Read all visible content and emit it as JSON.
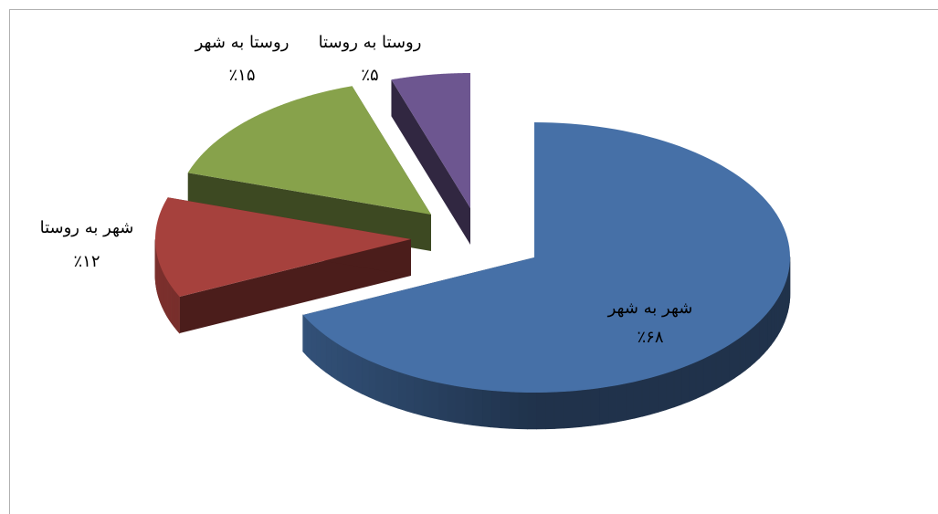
{
  "chart_data": {
    "type": "pie",
    "categories": [
      "شهر به شهر",
      "شهر به روستا",
      "روستا به شهر",
      "روستا به روستا"
    ],
    "values": [
      68,
      12,
      15,
      5
    ],
    "value_labels": [
      "٪۶۸",
      "٪۱۲",
      "٪۱۵",
      "٪۵"
    ],
    "colors": [
      "#4670a7",
      "#a6413d",
      "#87a24b",
      "#6d5690"
    ]
  }
}
